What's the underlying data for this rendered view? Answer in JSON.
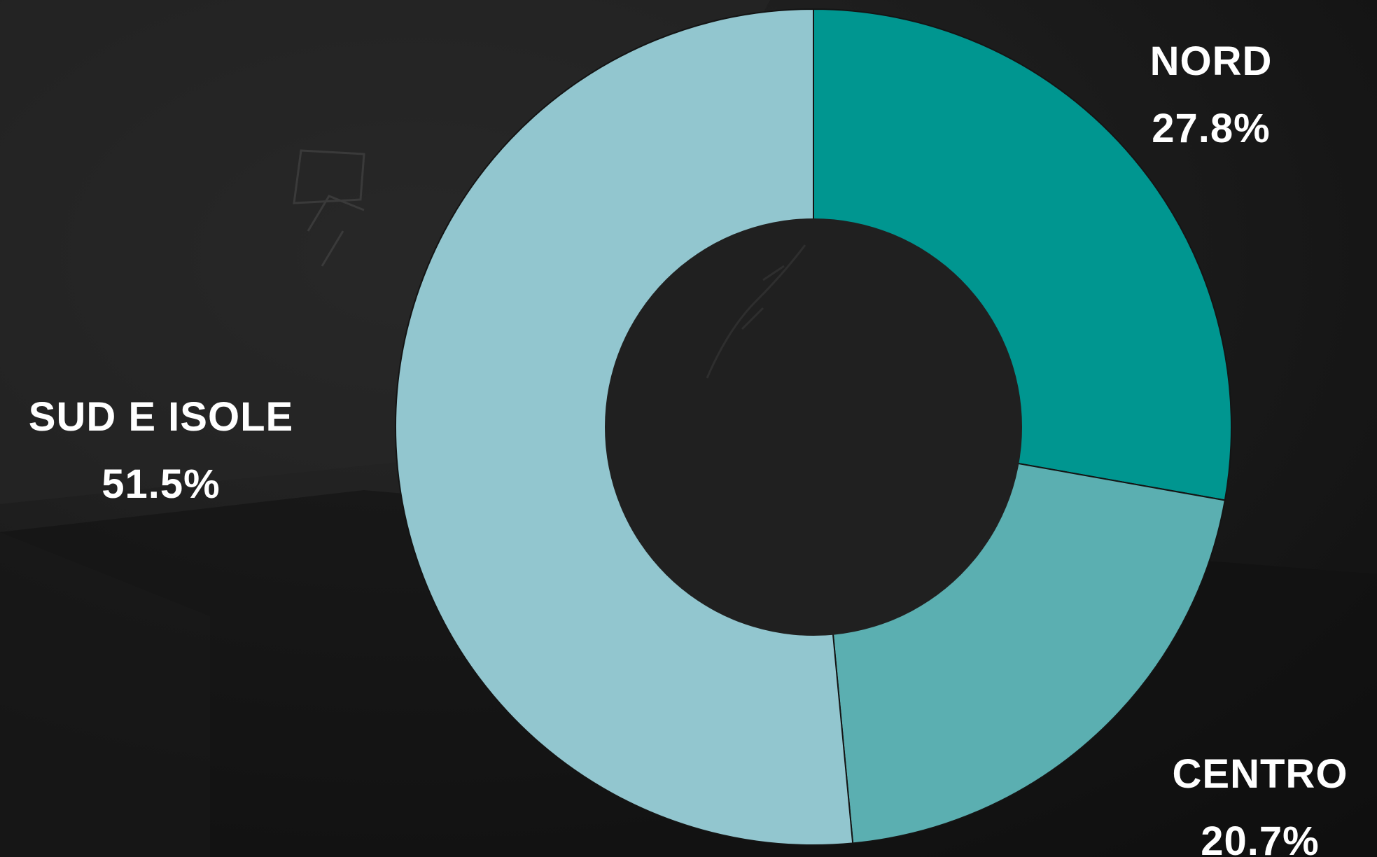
{
  "chart_data": {
    "type": "pie",
    "variant": "donut",
    "start_angle": "12 o'clock",
    "direction": "clockwise",
    "categories": [
      "NORD",
      "CENTRO",
      "SUD E ISOLE"
    ],
    "values": [
      27.8,
      20.7,
      51.5
    ],
    "value_labels": [
      "27.8%",
      "20.7%",
      "51.5%"
    ],
    "colors": [
      "#009690",
      "#5bafb1",
      "#92c6cf"
    ],
    "hole_color": "#202020",
    "separator_color": "#141414"
  }
}
